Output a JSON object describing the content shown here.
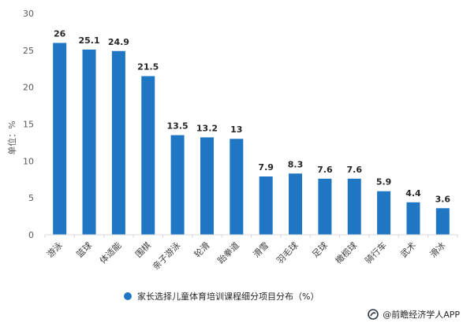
{
  "colors": {
    "bar": "#1f77c4",
    "axis": "#d9d9d9",
    "text": "#262626"
  },
  "chart_data": {
    "type": "bar",
    "categories": [
      "游泳",
      "篮球",
      "体适能",
      "围棋",
      "亲子游泳",
      "轮滑",
      "跆拳道",
      "滑雪",
      "羽毛球",
      "足球",
      "橄榄球",
      "骑行车",
      "武术",
      "滑冰"
    ],
    "series": [
      {
        "name": "家长选择儿童体育培训课程细分项目分布（%）",
        "values": [
          26,
          25.1,
          24.9,
          21.5,
          13.5,
          13.2,
          13,
          7.9,
          8.3,
          7.6,
          7.6,
          5.9,
          4.4,
          3.6
        ],
        "labels": [
          "26",
          "25.1",
          "24.9",
          "21.5",
          "13.5",
          "13.2",
          "13",
          "7.9",
          "8.3",
          "7.6",
          "7.6",
          "5.9",
          "4.4",
          "3.6"
        ]
      }
    ],
    "ylabel": "单位：%",
    "ylim": [
      0,
      30
    ],
    "yticks": [
      0,
      5,
      10,
      15,
      20,
      25,
      30
    ],
    "grid": false,
    "legend_position": "bottom"
  },
  "legend": {
    "label": "家长选择儿童体育培训课程细分项目分布（%）"
  },
  "source": {
    "text": "@前瞻经济学人APP",
    "logo_icon": "qianzhan-logo-icon"
  }
}
